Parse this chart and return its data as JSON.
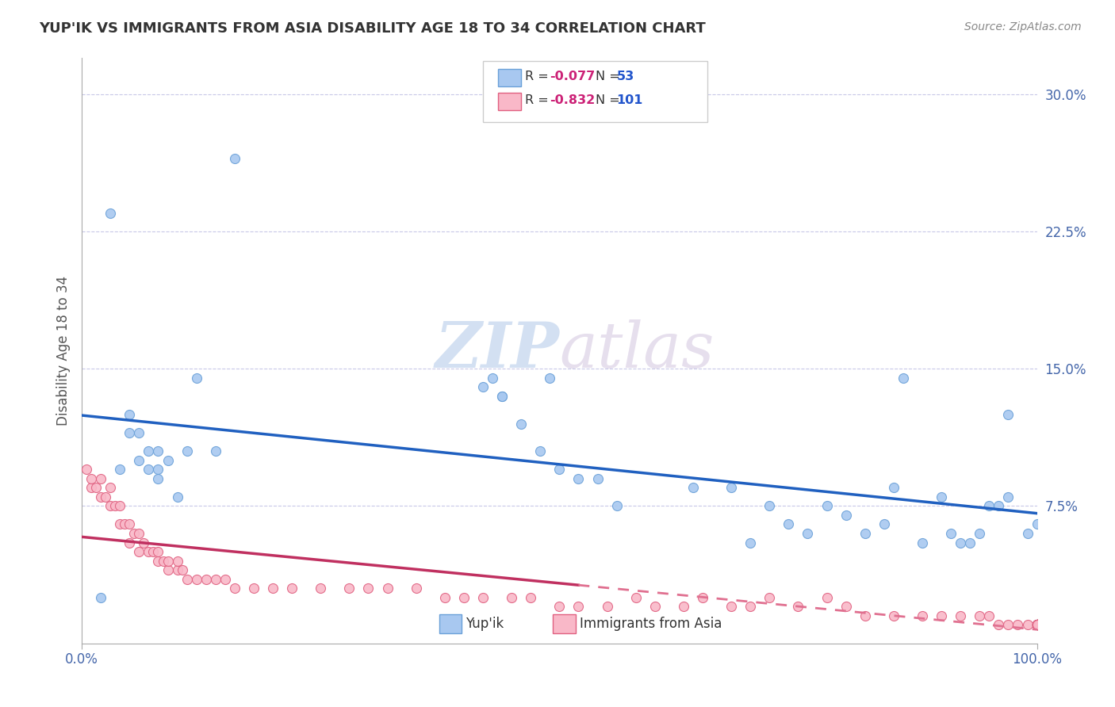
{
  "title": "YUP'IK VS IMMIGRANTS FROM ASIA DISABILITY AGE 18 TO 34 CORRELATION CHART",
  "source": "Source: ZipAtlas.com",
  "ylabel": "Disability Age 18 to 34",
  "xlim": [
    0,
    100
  ],
  "ylim": [
    0,
    32
  ],
  "yticks": [
    0,
    7.5,
    15.0,
    22.5,
    30.0
  ],
  "ytick_labels": [
    "",
    "7.5%",
    "15.0%",
    "22.5%",
    "30.0%"
  ],
  "watermark_zip": "ZIP",
  "watermark_atlas": "atlas",
  "series1_color": "#a8c8f0",
  "series1_edge": "#6aa0d8",
  "series2_color": "#f9b8c8",
  "series2_edge": "#e06080",
  "trend1_color": "#2060c0",
  "trend2_color": "#c03060",
  "trend2_dash_color": "#e07090",
  "background_color": "#ffffff",
  "grid_color": "#c8c8e8",
  "series1_x": [
    2,
    3,
    4,
    5,
    5,
    6,
    6,
    7,
    7,
    8,
    8,
    8,
    9,
    10,
    11,
    12,
    14,
    16,
    42,
    43,
    44,
    44,
    46,
    48,
    49,
    50,
    52,
    54,
    56,
    64,
    68,
    70,
    72,
    74,
    76,
    78,
    80,
    82,
    84,
    85,
    86,
    88,
    90,
    91,
    92,
    93,
    94,
    95,
    96,
    97,
    97,
    99,
    100
  ],
  "series1_y": [
    2.5,
    23.5,
    9.5,
    12.5,
    11.5,
    11.5,
    10.0,
    10.5,
    9.5,
    9.5,
    10.5,
    9.0,
    10.0,
    8.0,
    10.5,
    14.5,
    10.5,
    26.5,
    14.0,
    14.5,
    13.5,
    13.5,
    12.0,
    10.5,
    14.5,
    9.5,
    9.0,
    9.0,
    7.5,
    8.5,
    8.5,
    5.5,
    7.5,
    6.5,
    6.0,
    7.5,
    7.0,
    6.0,
    6.5,
    8.5,
    14.5,
    5.5,
    8.0,
    6.0,
    5.5,
    5.5,
    6.0,
    7.5,
    7.5,
    8.0,
    12.5,
    6.0,
    6.5
  ],
  "series2_x": [
    0.5,
    1,
    1,
    1.5,
    2,
    2,
    2.5,
    3,
    3,
    3.5,
    4,
    4,
    4.5,
    5,
    5,
    5.5,
    6,
    6,
    6.5,
    7,
    7.5,
    8,
    8,
    8.5,
    9,
    9,
    10,
    10,
    10.5,
    11,
    12,
    13,
    14,
    15,
    16,
    18,
    20,
    22,
    25,
    28,
    30,
    32,
    35,
    38,
    40,
    42,
    45,
    47,
    50,
    52,
    55,
    58,
    60,
    63,
    65,
    68,
    70,
    72,
    75,
    78,
    80,
    82,
    85,
    88,
    90,
    92,
    94,
    95,
    96,
    97,
    98,
    99,
    100,
    100,
    100,
    100,
    100,
    100,
    100,
    100,
    100,
    100,
    100,
    100,
    100,
    100,
    100,
    100,
    100,
    100,
    100,
    100,
    100,
    100,
    100,
    100,
    100,
    100,
    100,
    100,
    100
  ],
  "series2_y": [
    9.5,
    8.5,
    9.0,
    8.5,
    8.0,
    9.0,
    8.0,
    7.5,
    8.5,
    7.5,
    6.5,
    7.5,
    6.5,
    5.5,
    6.5,
    6.0,
    5.0,
    6.0,
    5.5,
    5.0,
    5.0,
    4.5,
    5.0,
    4.5,
    4.0,
    4.5,
    4.0,
    4.5,
    4.0,
    3.5,
    3.5,
    3.5,
    3.5,
    3.5,
    3.0,
    3.0,
    3.0,
    3.0,
    3.0,
    3.0,
    3.0,
    3.0,
    3.0,
    2.5,
    2.5,
    2.5,
    2.5,
    2.5,
    2.0,
    2.0,
    2.0,
    2.5,
    2.0,
    2.0,
    2.5,
    2.0,
    2.0,
    2.5,
    2.0,
    2.5,
    2.0,
    1.5,
    1.5,
    1.5,
    1.5,
    1.5,
    1.5,
    1.5,
    1.0,
    1.0,
    1.0,
    1.0,
    1.0,
    1.0,
    1.0,
    1.0,
    1.0,
    1.0,
    1.0,
    1.0,
    1.0,
    1.0,
    1.0,
    1.0,
    1.0,
    1.0,
    1.0,
    1.0,
    1.0,
    1.0,
    1.0,
    1.0,
    1.0,
    1.0,
    1.0,
    1.0,
    1.0,
    1.0,
    1.0,
    1.0,
    1.0
  ]
}
